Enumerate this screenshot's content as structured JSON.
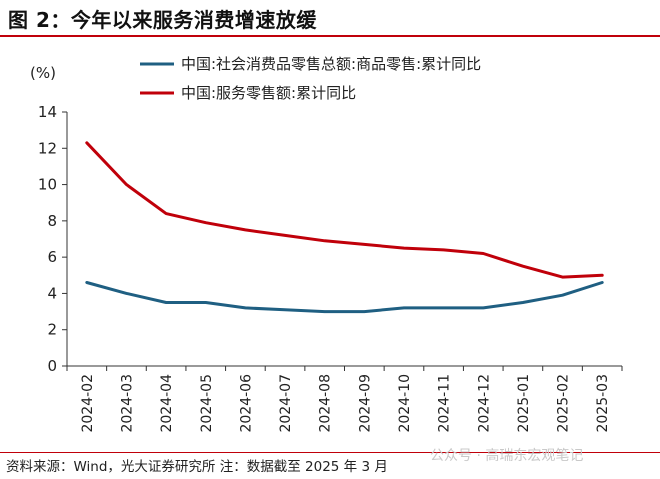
{
  "title": "图 2：今年以来服务消费增速放缓",
  "source": "资料来源：Wind，光大证券研究所 注：数据截至 2025 年 3 月",
  "watermark": "公众号 · 高瑞东宏观笔记",
  "chart_data": {
    "type": "line",
    "ylabel": "(%)",
    "ylim": [
      0,
      14
    ],
    "yticks": [
      0,
      2,
      4,
      6,
      8,
      10,
      12,
      14
    ],
    "grid": false,
    "legend_position": "top",
    "categories": [
      "2024-02",
      "2024-03",
      "2024-04",
      "2024-05",
      "2024-06",
      "2024-07",
      "2024-08",
      "2024-09",
      "2024-10",
      "2024-11",
      "2024-12",
      "2025-01",
      "2025-02",
      "2025-03"
    ],
    "series": [
      {
        "name": "中国:社会消费品零售总额:商品零售:累计同比",
        "color": "#1f5f82",
        "values": [
          4.6,
          4.0,
          3.5,
          3.5,
          3.2,
          3.1,
          3.0,
          3.0,
          3.2,
          3.2,
          3.2,
          3.5,
          3.9,
          4.6
        ]
      },
      {
        "name": "中国:服务零售额:累计同比",
        "color": "#c0000a",
        "values": [
          12.3,
          10.0,
          8.4,
          7.9,
          7.5,
          7.2,
          6.9,
          6.7,
          6.5,
          6.4,
          6.2,
          5.5,
          4.9,
          5.0
        ]
      }
    ]
  }
}
